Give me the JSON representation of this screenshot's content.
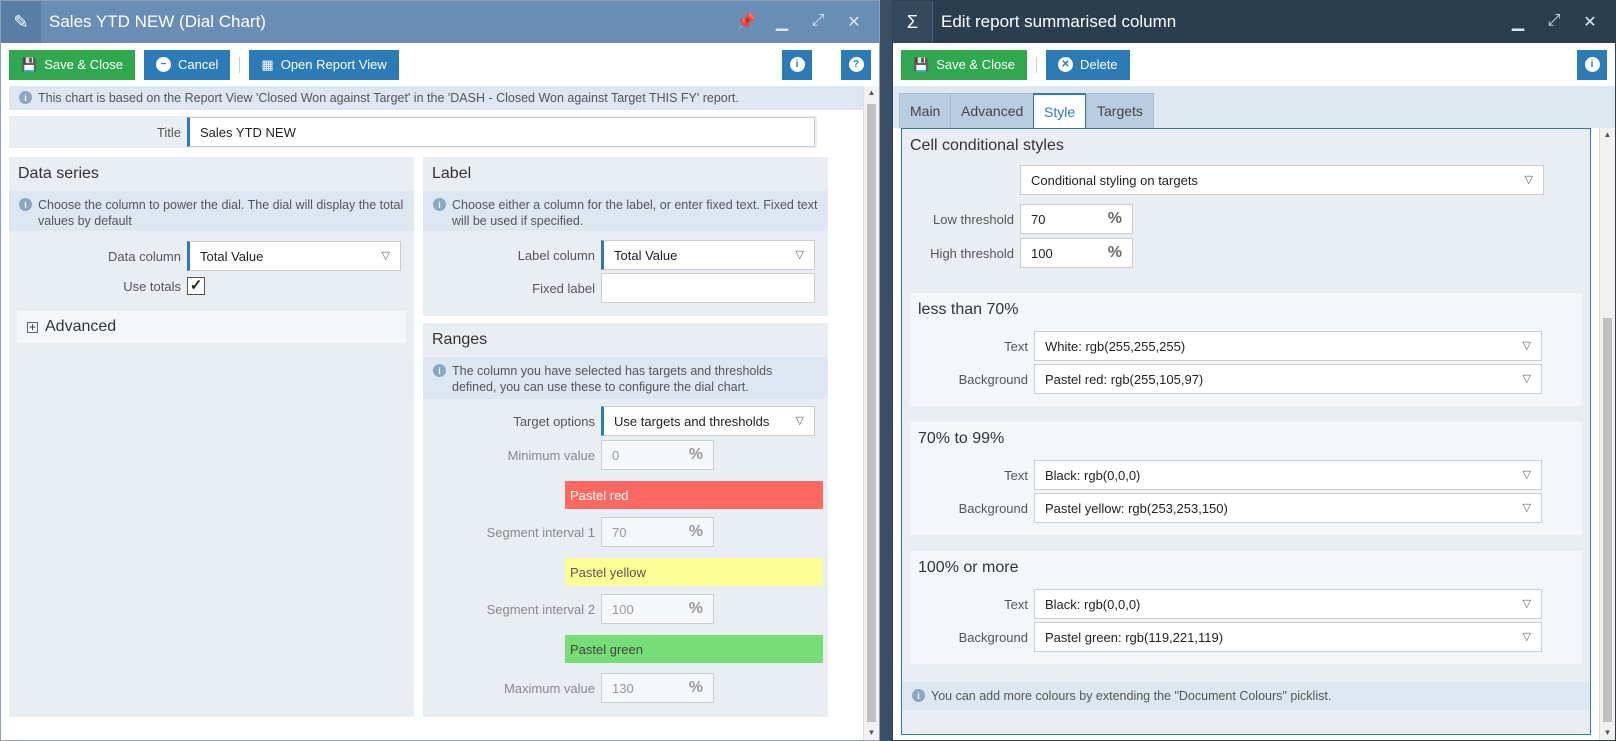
{
  "left": {
    "title": "Sales YTD NEW (Dial Chart)",
    "toolbar": {
      "save": "Save & Close",
      "cancel": "Cancel",
      "open_view": "Open Report View"
    },
    "info": "This chart is based on the Report View 'Closed Won against Target' in the 'DASH - Closed Won against Target THIS FY' report.",
    "title_field": {
      "label": "Title",
      "value": "Sales YTD NEW"
    },
    "data_series": {
      "heading": "Data series",
      "info": "Choose the column to power the dial. The dial will display the total values by default",
      "data_column_label": "Data column",
      "data_column_value": "Total Value",
      "use_totals_label": "Use totals",
      "advanced_label": "Advanced"
    },
    "label_panel": {
      "heading": "Label",
      "info": "Choose either a column for the label, or enter fixed text. Fixed text will be used if specified.",
      "label_column_label": "Label column",
      "label_column_value": "Total Value",
      "fixed_label_label": "Fixed label",
      "fixed_label_value": ""
    },
    "ranges": {
      "heading": "Ranges",
      "info": "The column you have selected has targets and thresholds defined, you can use these to configure the dial chart.",
      "target_options_label": "Target options",
      "target_options_value": "Use targets and thresholds",
      "minimum_label": "Minimum value",
      "minimum_value": "0",
      "seg1_label": "Segment interval 1",
      "seg1_value": "70",
      "seg2_label": "Segment interval 2",
      "seg2_value": "100",
      "maximum_label": "Maximum value",
      "maximum_value": "130",
      "swatch1": {
        "name": "Pastel red",
        "color": "#ff6961"
      },
      "swatch2": {
        "name": "Pastel yellow",
        "color": "#fdfd96"
      },
      "swatch3": {
        "name": "Pastel green",
        "color": "#77dd77"
      }
    }
  },
  "right": {
    "title": "Edit report summarised column",
    "toolbar": {
      "save": "Save & Close",
      "delete": "Delete"
    },
    "tabs": [
      "Main",
      "Advanced",
      "Style",
      "Targets"
    ],
    "active_tab": "Style",
    "cell_styles": {
      "heading": "Cell conditional styles",
      "mode": "Conditional styling on targets",
      "low_label": "Low threshold",
      "low_value": "70",
      "high_label": "High threshold",
      "high_value": "100"
    },
    "sections": [
      {
        "heading": "less than 70%",
        "text_label": "Text",
        "text_value": "White: rgb(255,255,255)",
        "bg_label": "Background",
        "bg_value": "Pastel red: rgb(255,105,97)"
      },
      {
        "heading": "70% to 99%",
        "text_label": "Text",
        "text_value": "Black: rgb(0,0,0)",
        "bg_label": "Background",
        "bg_value": "Pastel yellow: rgb(253,253,150)"
      },
      {
        "heading": "100% or more",
        "text_label": "Text",
        "text_value": "Black: rgb(0,0,0)",
        "bg_label": "Background",
        "bg_value": "Pastel green: rgb(119,221,119)"
      }
    ],
    "footer_info": "You can add more colours by extending the \"Document Colours\" picklist."
  },
  "pct_symbol": "%",
  "icons": {
    "edit": "pencil-icon",
    "sigma": "sigma-icon",
    "pin": "pin-icon",
    "minimize": "minimize-icon",
    "maximize": "maximize-icon",
    "close": "close-icon"
  }
}
